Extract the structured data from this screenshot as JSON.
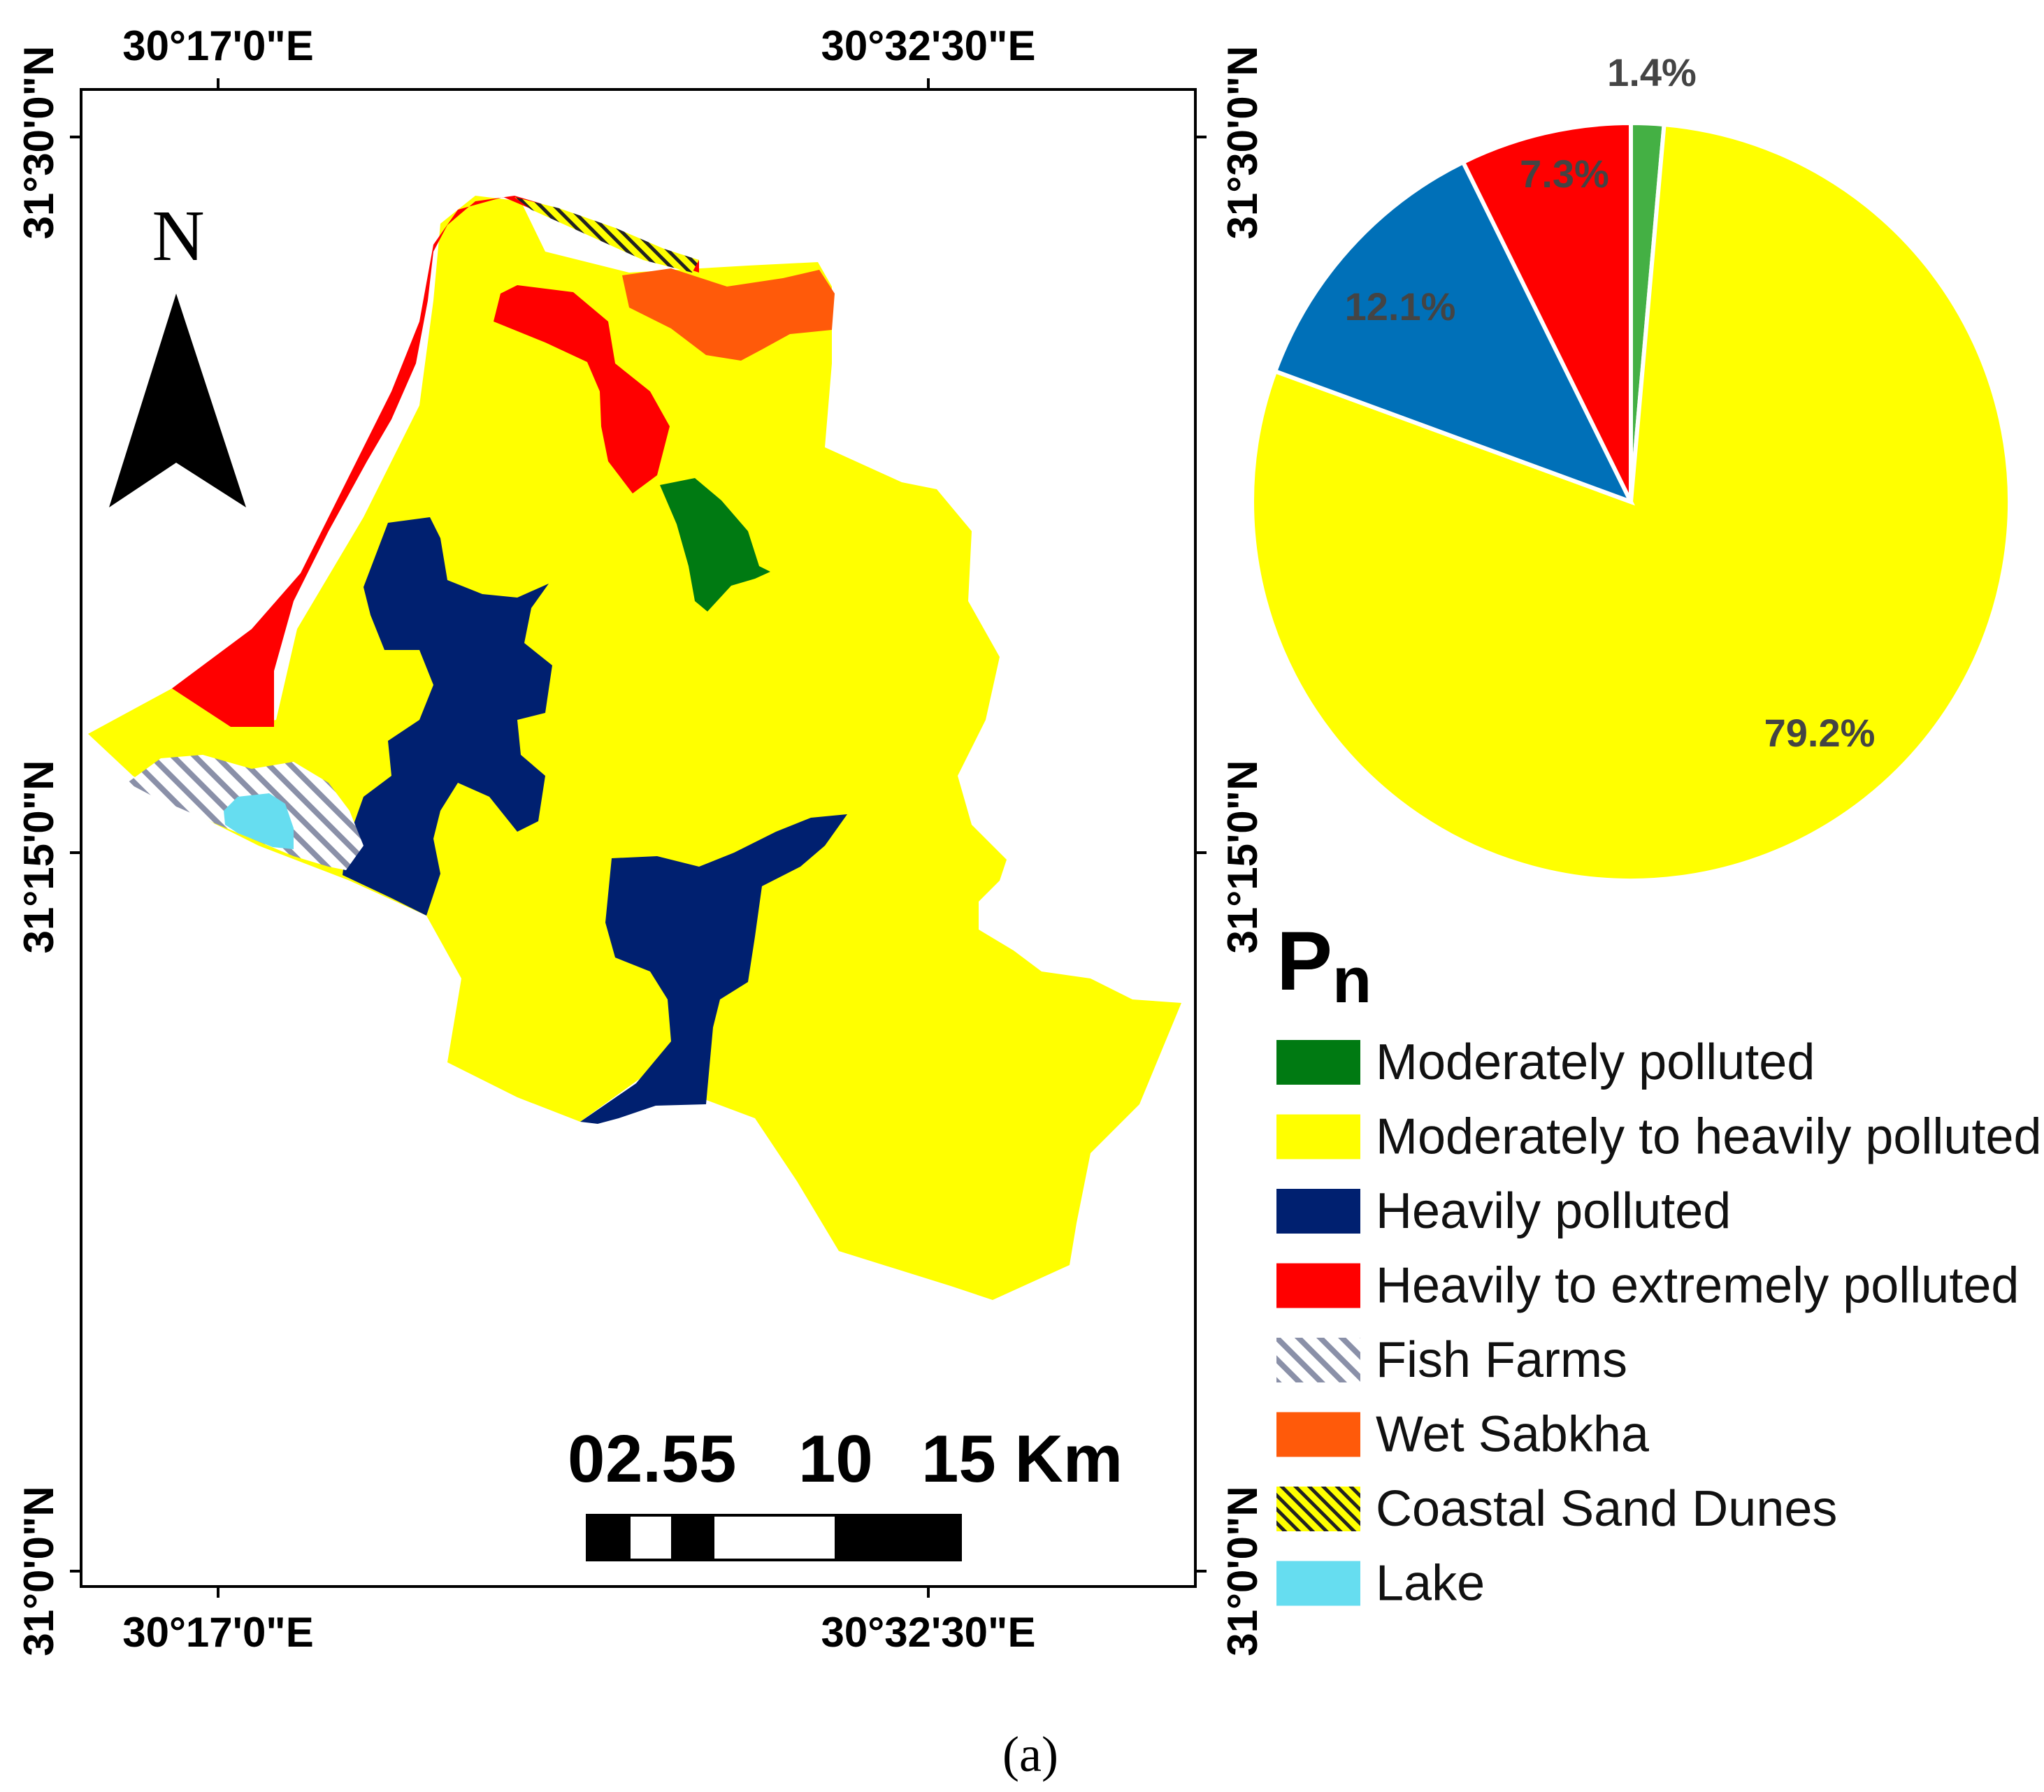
{
  "map": {
    "north_label": "N",
    "scale_bar": {
      "labels": [
        "0",
        "2.5",
        "5",
        "10",
        "15 Km"
      ]
    },
    "coordinates": {
      "top_left_lon": "30°17'0\"E",
      "top_right_lon": "30°32'30\"E",
      "bottom_left_lon": "30°17'0\"E",
      "bottom_right_lon": "30°32'30\"E",
      "left_top_lat": "31°30'0\"N",
      "left_mid_lat": "31°15'0\"N",
      "left_bottom_lat": "31°0'0\"N",
      "right_top_lat": "31°30'0\"N",
      "right_mid_lat": "31°15'0\"N",
      "right_bottom_lat": "31°0'0\"N"
    },
    "colors": {
      "moderately_polluted": "#007a12",
      "moderately_to_heavily": "#ffff00",
      "heavily": "#002070",
      "heavily_to_extremely": "#ff0000",
      "wet_sabkha": "#ff5a0a",
      "lake": "#66ddf0",
      "fish_farms_stripe": "#8a90a8"
    }
  },
  "chart_data": {
    "type": "pie",
    "slices": [
      {
        "label": "Moderately polluted",
        "value": 1.4,
        "display": "1.4%",
        "color": "#44b044"
      },
      {
        "label": "Moderately to heavily polluted",
        "value": 79.2,
        "display": "79.2%",
        "color": "#ffff00"
      },
      {
        "label": "Heavily polluted",
        "value": 12.1,
        "display": "12.1%",
        "color": "#0070b8"
      },
      {
        "label": "Heavily to extremely polluted",
        "value": 7.3,
        "display": "7.3%",
        "color": "#ff0000"
      }
    ],
    "label_color": "#444444"
  },
  "legend": {
    "title_main": "P",
    "title_sub": "n",
    "items": [
      {
        "label": "Moderately polluted",
        "color": "#007a12",
        "pattern": "solid"
      },
      {
        "label": "Moderately to heavily polluted",
        "color": "#ffff00",
        "pattern": "solid"
      },
      {
        "label": "Heavily polluted",
        "color": "#002070",
        "pattern": "solid"
      },
      {
        "label": "Heavily to extremely polluted",
        "color": "#ff0000",
        "pattern": "solid"
      },
      {
        "label": "Fish Farms",
        "color": "#8a90a8",
        "pattern": "hatch-gray"
      },
      {
        "label": "Wet Sabkha",
        "color": "#ff5a0a",
        "pattern": "solid"
      },
      {
        "label": "Coastal Sand Dunes",
        "color": "#ffff00",
        "pattern": "hatch-yellow"
      },
      {
        "label": "Lake",
        "color": "#66ddf0",
        "pattern": "solid"
      }
    ]
  },
  "caption": "(a)"
}
